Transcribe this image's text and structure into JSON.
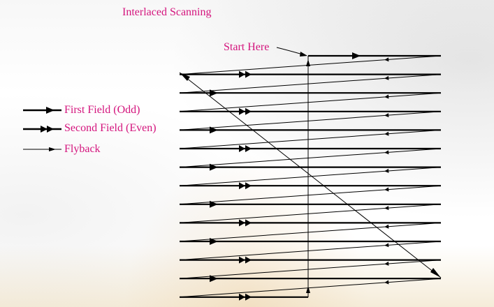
{
  "title": "Interlaced Scanning",
  "start_label": "Start Here",
  "legend": [
    {
      "label": "First Field (Odd)",
      "marker": "single-arrow"
    },
    {
      "label": "Second Field (Even)",
      "marker": "double-arrow"
    },
    {
      "label": "Flyback",
      "marker": "thin-arrow"
    }
  ],
  "colors": {
    "text": "#d4147d",
    "lines": "#000000"
  }
}
